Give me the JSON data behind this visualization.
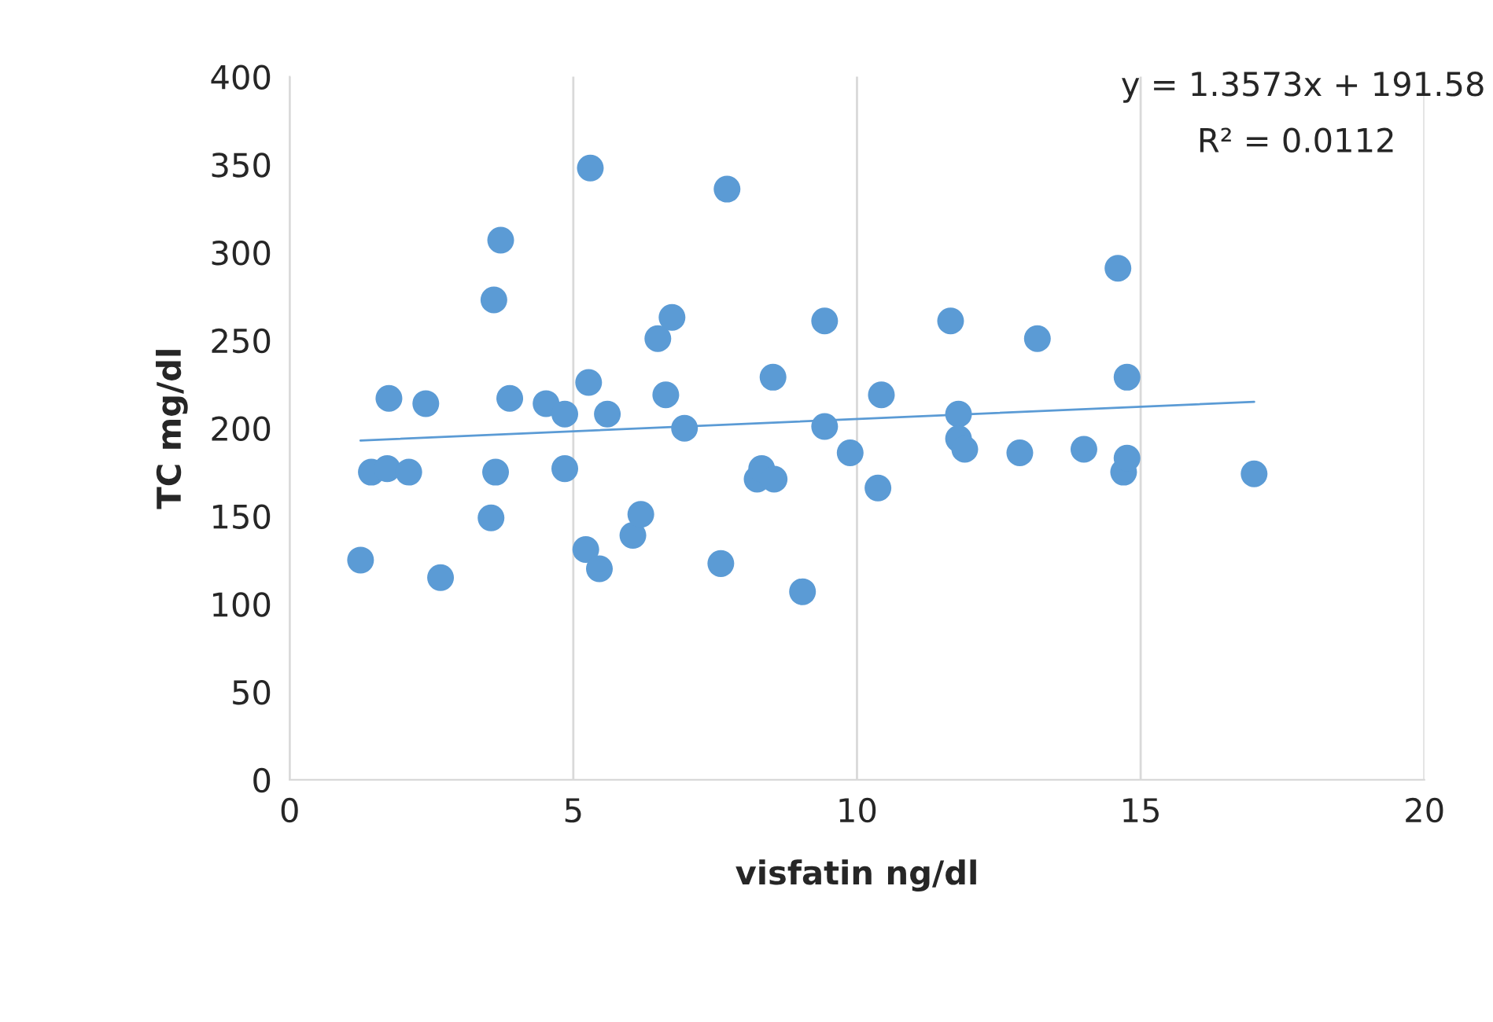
{
  "chart_data": {
    "type": "scatter",
    "xlabel": "visfatin ng/dl",
    "ylabel": "TC mg/dl",
    "annotations": [
      "y = 1.3573x + 191.58",
      "R² = 0.0112"
    ],
    "x": [
      1.25,
      1.44,
      1.75,
      1.72,
      2.1,
      2.4,
      2.66,
      3.55,
      3.6,
      3.63,
      3.72,
      3.88,
      4.52,
      4.85,
      4.85,
      5.3,
      5.27,
      5.22,
      5.46,
      5.6,
      6.05,
      6.19,
      6.49,
      6.63,
      6.74,
      6.96,
      7.6,
      7.71,
      8.24,
      8.32,
      8.52,
      8.54,
      9.04,
      9.43,
      9.43,
      9.88,
      10.37,
      10.43,
      11.65,
      11.79,
      11.79,
      11.9,
      12.87,
      13.18,
      14.0,
      14.6,
      14.7,
      14.76,
      14.76,
      17.0
    ],
    "series": [
      {
        "color": "#5b9bd5",
        "marker": "circle",
        "values": [
          125,
          175,
          217,
          177,
          175,
          214,
          115,
          149,
          273,
          175,
          307,
          217,
          214,
          208,
          177,
          348,
          226,
          131,
          120,
          208,
          139,
          151,
          251,
          219,
          263,
          200,
          123,
          336,
          171,
          177,
          229,
          171,
          107,
          261,
          201,
          186,
          166,
          219,
          261,
          208,
          194,
          188,
          186,
          251,
          188,
          291,
          175,
          229,
          183,
          174
        ]
      },
      {
        "type": "line",
        "color": "#5b9bd5",
        "x": [
          1.25,
          17.0
        ],
        "values": [
          193,
          215
        ]
      }
    ],
    "xlim": [
      0,
      20
    ],
    "xticks": [
      0,
      5,
      10,
      15,
      20
    ],
    "ylim": [
      0,
      400
    ],
    "yticks": [
      0,
      50,
      100,
      150,
      200,
      250,
      300,
      350,
      400
    ],
    "grid": "x",
    "legend": false
  }
}
